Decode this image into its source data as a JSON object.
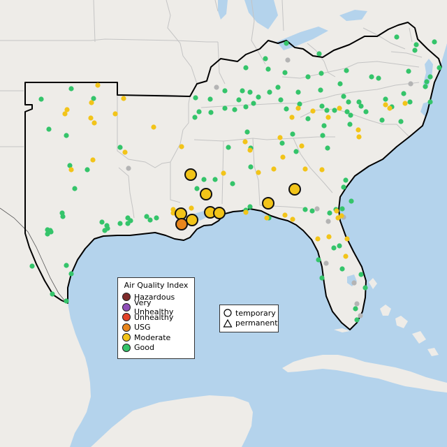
{
  "legend": {
    "title": "Air Quality Index",
    "categories": [
      {
        "key": "hazardous",
        "label": "Hazardous",
        "color": "#7e2b2b"
      },
      {
        "key": "very_unhealthy",
        "label": "Very Unhealthy",
        "color": "#8f4fb8"
      },
      {
        "key": "unhealthy",
        "label": "Unhealthy",
        "color": "#e2432a"
      },
      {
        "key": "usg",
        "label": "USG",
        "color": "#e8861d"
      },
      {
        "key": "moderate",
        "label": "Moderate",
        "color": "#f2c419"
      },
      {
        "key": "good",
        "label": "Good",
        "color": "#34c46a"
      }
    ]
  },
  "shape_legend": {
    "temporary_label": "temporary",
    "permanent_label": "permanent"
  },
  "colors": {
    "water": "#b4d3ec",
    "land": "#eeece8",
    "grey_station": "#b4b4b4"
  },
  "monitors_large": [
    {
      "cat": "moderate",
      "x": 273,
      "y": 250
    },
    {
      "cat": "moderate",
      "x": 295,
      "y": 278
    },
    {
      "cat": "moderate",
      "x": 259,
      "y": 306
    },
    {
      "cat": "moderate",
      "x": 275,
      "y": 315
    },
    {
      "cat": "moderate",
      "x": 301,
      "y": 304
    },
    {
      "cat": "moderate",
      "x": 314,
      "y": 305
    },
    {
      "cat": "moderate",
      "x": 384,
      "y": 291
    },
    {
      "cat": "moderate",
      "x": 422,
      "y": 271
    },
    {
      "cat": "usg",
      "x": 260,
      "y": 321
    }
  ],
  "monitors_small": {
    "good": [
      [
        410,
        62
      ],
      [
        457,
        77
      ],
      [
        568,
        53
      ],
      [
        596,
        64
      ],
      [
        594,
        72
      ],
      [
        622,
        60
      ],
      [
        629,
        97
      ],
      [
        585,
        102
      ],
      [
        616,
        110
      ],
      [
        611,
        117
      ],
      [
        609,
        124
      ],
      [
        616,
        146
      ],
      [
        380,
        84
      ],
      [
        352,
        97
      ],
      [
        408,
        104
      ],
      [
        384,
        99
      ],
      [
        441,
        110
      ],
      [
        460,
        105
      ],
      [
        496,
        101
      ],
      [
        532,
        110
      ],
      [
        542,
        112
      ],
      [
        347,
        130
      ],
      [
        358,
        132
      ],
      [
        370,
        139
      ],
      [
        386,
        132
      ],
      [
        398,
        125
      ],
      [
        427,
        132
      ],
      [
        459,
        129
      ],
      [
        487,
        120
      ],
      [
        552,
        142
      ],
      [
        578,
        134
      ],
      [
        492,
        138
      ],
      [
        499,
        146
      ],
      [
        342,
        143
      ],
      [
        352,
        153
      ],
      [
        301,
        142
      ],
      [
        280,
        140
      ],
      [
        279,
        168
      ],
      [
        285,
        160
      ],
      [
        302,
        161
      ],
      [
        322,
        155
      ],
      [
        336,
        157
      ],
      [
        363,
        148
      ],
      [
        402,
        143
      ],
      [
        429,
        149
      ],
      [
        461,
        152
      ],
      [
        468,
        158
      ],
      [
        479,
        158
      ],
      [
        497,
        160
      ],
      [
        514,
        146
      ],
      [
        517,
        152
      ],
      [
        524,
        160
      ],
      [
        561,
        153
      ],
      [
        587,
        146
      ],
      [
        322,
        130
      ],
      [
        410,
        156
      ],
      [
        441,
        170
      ],
      [
        501,
        178
      ],
      [
        464,
        180
      ],
      [
        419,
        192
      ],
      [
        404,
        205
      ],
      [
        424,
        217
      ],
      [
        462,
        194
      ],
      [
        469,
        212
      ],
      [
        502,
        165
      ],
      [
        547,
        172
      ],
      [
        574,
        174
      ],
      [
        327,
        211
      ],
      [
        354,
        189
      ],
      [
        359,
        212
      ],
      [
        359,
        239
      ],
      [
        333,
        263
      ],
      [
        358,
        296
      ],
      [
        352,
        301
      ],
      [
        385,
        312
      ],
      [
        437,
        300
      ],
      [
        447,
        302
      ],
      [
        472,
        305
      ],
      [
        481,
        300
      ],
      [
        490,
        299
      ],
      [
        495,
        258
      ],
      [
        492,
        268
      ],
      [
        503,
        288
      ],
      [
        478,
        355
      ],
      [
        486,
        352
      ],
      [
        456,
        372
      ],
      [
        461,
        398
      ],
      [
        490,
        385
      ],
      [
        517,
        393
      ],
      [
        523,
        412
      ],
      [
        509,
        442
      ],
      [
        511,
        458
      ],
      [
        59,
        142
      ],
      [
        102,
        127
      ],
      [
        134,
        141
      ],
      [
        70,
        185
      ],
      [
        95,
        194
      ],
      [
        100,
        237
      ],
      [
        125,
        243
      ],
      [
        107,
        270
      ],
      [
        89,
        305
      ],
      [
        90,
        310
      ],
      [
        68,
        329
      ],
      [
        72,
        330
      ],
      [
        68,
        335
      ],
      [
        73,
        332
      ],
      [
        146,
        318
      ],
      [
        153,
        323
      ],
      [
        150,
        330
      ],
      [
        154,
        327
      ],
      [
        172,
        320
      ],
      [
        183,
        312
      ],
      [
        187,
        316
      ],
      [
        183,
        320
      ],
      [
        210,
        310
      ],
      [
        215,
        315
      ],
      [
        95,
        380
      ],
      [
        102,
        392
      ],
      [
        75,
        421
      ],
      [
        95,
        431
      ],
      [
        46,
        381
      ],
      [
        172,
        211
      ],
      [
        224,
        312
      ],
      [
        292,
        257
      ],
      [
        308,
        257
      ],
      [
        282,
        270
      ]
    ],
    "moderate": [
      [
        140,
        122
      ],
      [
        131,
        147
      ],
      [
        177,
        141
      ],
      [
        165,
        163
      ],
      [
        130,
        169
      ],
      [
        96,
        157
      ],
      [
        93,
        163
      ],
      [
        135,
        176
      ],
      [
        220,
        182
      ],
      [
        179,
        218
      ],
      [
        133,
        229
      ],
      [
        102,
        243
      ],
      [
        248,
        300
      ],
      [
        248,
        305
      ],
      [
        260,
        210
      ],
      [
        274,
        298
      ],
      [
        351,
        203
      ],
      [
        358,
        215
      ],
      [
        320,
        248
      ],
      [
        370,
        247
      ],
      [
        418,
        168
      ],
      [
        401,
        197
      ],
      [
        392,
        242
      ],
      [
        405,
        225
      ],
      [
        437,
        242
      ],
      [
        432,
        209
      ],
      [
        427,
        155
      ],
      [
        448,
        159
      ],
      [
        470,
        168
      ],
      [
        486,
        155
      ],
      [
        513,
        186
      ],
      [
        514,
        196
      ],
      [
        552,
        150
      ],
      [
        558,
        155
      ],
      [
        580,
        148
      ],
      [
        461,
        243
      ],
      [
        408,
        308
      ],
      [
        352,
        304
      ],
      [
        382,
        312
      ],
      [
        419,
        314
      ],
      [
        455,
        342
      ],
      [
        471,
        339
      ],
      [
        484,
        312
      ],
      [
        482,
        302
      ],
      [
        489,
        309
      ],
      [
        497,
        342
      ],
      [
        495,
        367
      ]
    ],
    "grey": [
      [
        412,
        86
      ],
      [
        588,
        120
      ],
      [
        310,
        125
      ],
      [
        184,
        241
      ],
      [
        454,
        299
      ],
      [
        470,
        317
      ],
      [
        492,
        311
      ],
      [
        467,
        377
      ],
      [
        507,
        405
      ],
      [
        511,
        435
      ],
      [
        516,
        452
      ]
    ]
  }
}
